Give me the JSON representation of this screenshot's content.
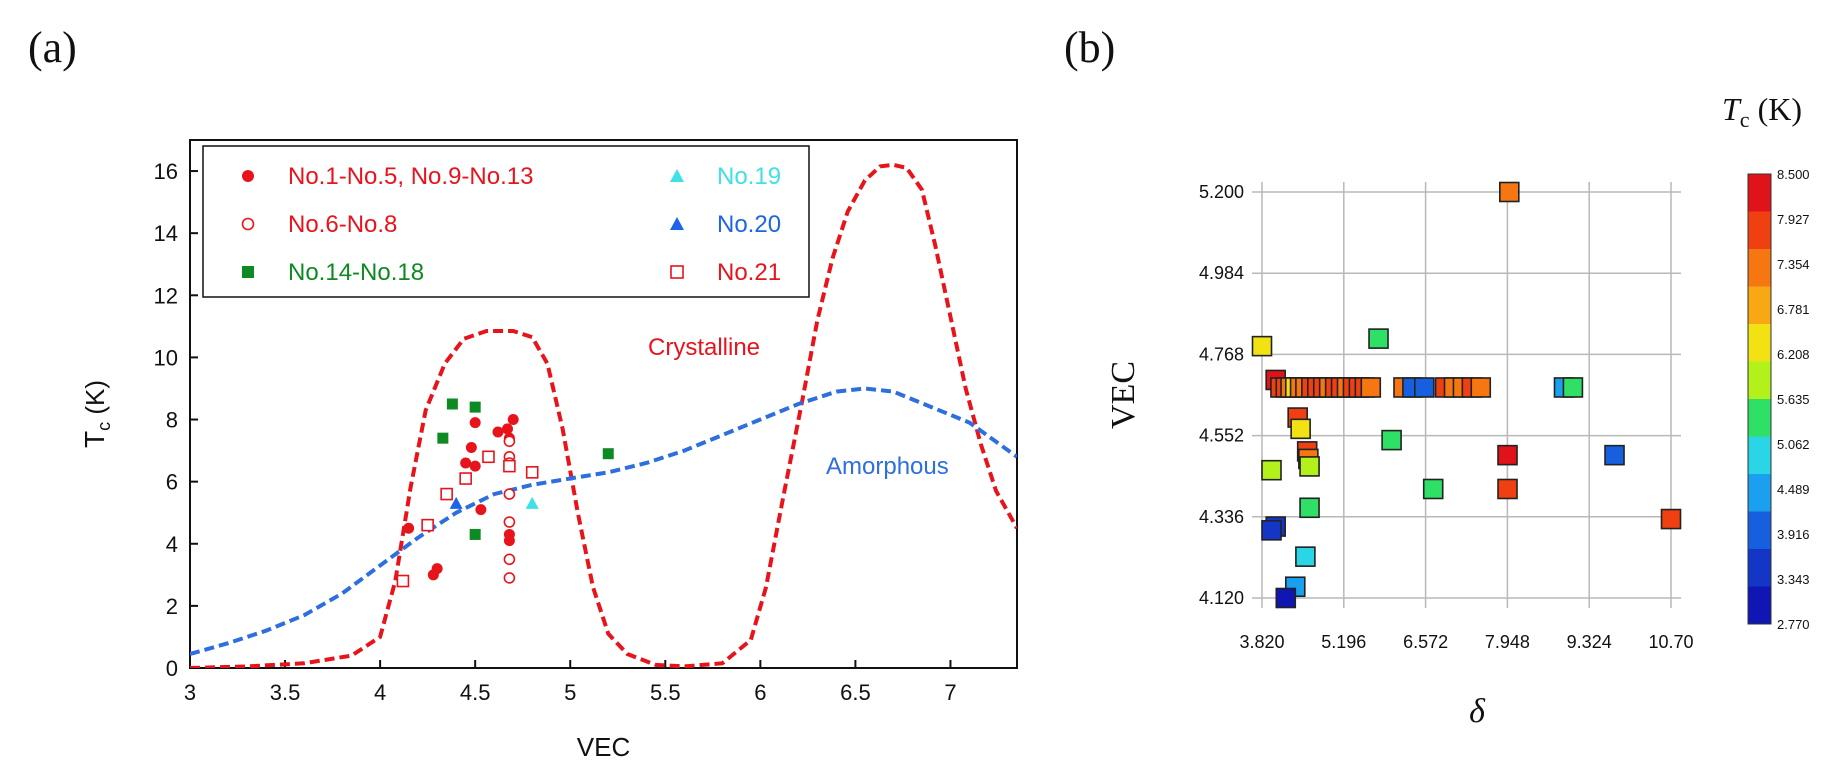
{
  "panels": {
    "a_label": "(a)",
    "b_label": "(b)"
  },
  "chart_data": [
    {
      "type": "scatter",
      "panel": "a",
      "xlabel": "VEC",
      "ylabel_main": "T",
      "ylabel_sub": "c",
      "ylabel_unit": "(K)",
      "xlim": [
        3,
        7.35
      ],
      "ylim": [
        0,
        17
      ],
      "xticks": [
        3,
        3.5,
        4,
        4.5,
        5,
        5.5,
        6,
        6.5,
        7
      ],
      "xtick_labels": [
        "3",
        "3.5",
        "4",
        "4.5",
        "5",
        "5.5",
        "6",
        "6.5",
        "7"
      ],
      "yticks": [
        0,
        2,
        4,
        6,
        8,
        10,
        12,
        14,
        16
      ],
      "ytick_labels": [
        "0",
        "2",
        "4",
        "6",
        "8",
        "10",
        "12",
        "14",
        "16"
      ],
      "grid": false,
      "legend_position": "top-left",
      "series": [
        {
          "name": "No.1-No.5, No.9-No.13",
          "marker": "filled-circle",
          "color": "#e8141c",
          "points": [
            [
              4.15,
              4.5
            ],
            [
              4.28,
              3.0
            ],
            [
              4.3,
              3.2
            ],
            [
              4.45,
              6.6
            ],
            [
              4.48,
              7.1
            ],
            [
              4.5,
              7.9
            ],
            [
              4.5,
              6.5
            ],
            [
              4.53,
              5.1
            ],
            [
              4.62,
              7.6
            ],
            [
              4.67,
              7.7
            ],
            [
              4.68,
              7.4
            ],
            [
              4.68,
              4.3
            ],
            [
              4.68,
              4.1
            ],
            [
              4.7,
              8.0
            ]
          ]
        },
        {
          "name": "No.6-No.8",
          "marker": "open-circle",
          "color": "#e8141c",
          "points": [
            [
              4.68,
              6.8
            ],
            [
              4.68,
              6.6
            ],
            [
              4.68,
              5.6
            ],
            [
              4.68,
              4.7
            ],
            [
              4.68,
              3.5
            ],
            [
              4.68,
              2.9
            ],
            [
              4.68,
              7.3
            ]
          ]
        },
        {
          "name": "No.14-No.18",
          "marker": "filled-square",
          "color": "#0e8a22",
          "points": [
            [
              4.38,
              8.5
            ],
            [
              4.5,
              8.4
            ],
            [
              4.33,
              7.4
            ],
            [
              4.5,
              4.3
            ],
            [
              5.2,
              6.9
            ]
          ]
        },
        {
          "name": "No.19",
          "marker": "filled-triangle",
          "color": "#3fe0e6",
          "points": [
            [
              4.8,
              5.3
            ]
          ]
        },
        {
          "name": "No.20",
          "marker": "filled-triangle",
          "color": "#1e64e8",
          "points": [
            [
              4.4,
              5.3
            ]
          ]
        },
        {
          "name": "No.21",
          "marker": "open-square",
          "color": "#e8141c",
          "points": [
            [
              4.12,
              2.8
            ],
            [
              4.25,
              4.6
            ],
            [
              4.35,
              5.6
            ],
            [
              4.45,
              6.1
            ],
            [
              4.57,
              6.8
            ],
            [
              4.68,
              6.5
            ],
            [
              4.8,
              6.3
            ]
          ]
        }
      ],
      "curves": [
        {
          "name": "Crystalline",
          "style": "dashed",
          "color": "#e8141c",
          "points": [
            [
              3,
              0
            ],
            [
              3.3,
              0.05
            ],
            [
              3.6,
              0.15
            ],
            [
              3.85,
              0.4
            ],
            [
              4.0,
              1.0
            ],
            [
              4.08,
              2.8
            ],
            [
              4.16,
              5.8
            ],
            [
              4.24,
              8.3
            ],
            [
              4.34,
              9.8
            ],
            [
              4.44,
              10.6
            ],
            [
              4.56,
              10.85
            ],
            [
              4.7,
              10.85
            ],
            [
              4.8,
              10.65
            ],
            [
              4.88,
              9.8
            ],
            [
              4.96,
              7.7
            ],
            [
              5.04,
              5.0
            ],
            [
              5.12,
              2.6
            ],
            [
              5.2,
              1.1
            ],
            [
              5.3,
              0.45
            ],
            [
              5.45,
              0.1
            ],
            [
              5.6,
              0.05
            ],
            [
              5.8,
              0.15
            ],
            [
              5.95,
              0.9
            ],
            [
              6.03,
              2.6
            ],
            [
              6.12,
              5.5
            ],
            [
              6.22,
              8.6
            ],
            [
              6.3,
              11.2
            ],
            [
              6.38,
              13.2
            ],
            [
              6.46,
              14.7
            ],
            [
              6.55,
              15.7
            ],
            [
              6.63,
              16.15
            ],
            [
              6.7,
              16.2
            ],
            [
              6.77,
              16.1
            ],
            [
              6.85,
              15.4
            ],
            [
              6.92,
              13.6
            ],
            [
              7.0,
              11.3
            ],
            [
              7.08,
              9.0
            ],
            [
              7.16,
              7.2
            ],
            [
              7.24,
              5.7
            ],
            [
              7.35,
              4.5
            ]
          ]
        },
        {
          "name": "Amorphous",
          "style": "dashed",
          "color": "#2e6ede",
          "points": [
            [
              3,
              0.45
            ],
            [
              3.2,
              0.8
            ],
            [
              3.4,
              1.2
            ],
            [
              3.6,
              1.7
            ],
            [
              3.8,
              2.4
            ],
            [
              4.0,
              3.3
            ],
            [
              4.2,
              4.2
            ],
            [
              4.4,
              5.0
            ],
            [
              4.6,
              5.6
            ],
            [
              4.8,
              5.9
            ],
            [
              5.0,
              6.1
            ],
            [
              5.2,
              6.3
            ],
            [
              5.4,
              6.6
            ],
            [
              5.6,
              7.0
            ],
            [
              5.8,
              7.5
            ],
            [
              6.0,
              8.0
            ],
            [
              6.2,
              8.5
            ],
            [
              6.4,
              8.9
            ],
            [
              6.55,
              9.0
            ],
            [
              6.7,
              8.9
            ],
            [
              6.9,
              8.4
            ],
            [
              7.1,
              7.9
            ],
            [
              7.35,
              6.8
            ]
          ]
        }
      ],
      "annotations": [
        {
          "text": "Crystalline",
          "color": "#e8141c"
        },
        {
          "text": "Amorphous",
          "color": "#2e6ede"
        }
      ]
    },
    {
      "type": "scatter",
      "panel": "b",
      "xlabel": "δ",
      "ylabel": "VEC",
      "xlim": [
        3.82,
        10.7
      ],
      "ylim": [
        4.12,
        5.2
      ],
      "xtick_labels": [
        "3.820",
        "5.196",
        "6.572",
        "7.948",
        "9.324",
        "10.70"
      ],
      "ytick_labels": [
        "4.120",
        "4.336",
        "4.552",
        "4.768",
        "4.984",
        "5.200"
      ],
      "grid": true,
      "marker": "square",
      "colorbar": {
        "title_main": "T",
        "title_sub": "c",
        "title_unit": "(K)",
        "levels": [
          "8.500",
          "7.927",
          "7.354",
          "6.781",
          "6.208",
          "5.635",
          "5.062",
          "4.489",
          "3.916",
          "3.343",
          "2.770"
        ],
        "colors": [
          "#e0121a",
          "#f04012",
          "#f67612",
          "#f8a812",
          "#f2e214",
          "#b2f21a",
          "#2ee066",
          "#2ad6e6",
          "#1aa0ee",
          "#1660e0",
          "#1436c6",
          "#0f16b4"
        ]
      },
      "points": [
        [
          3.82,
          4.79,
          6.2
        ],
        [
          4.05,
          4.7,
          8.3
        ],
        [
          4.13,
          4.68,
          7.9
        ],
        [
          4.22,
          4.68,
          7.6
        ],
        [
          4.3,
          4.68,
          7.5
        ],
        [
          4.38,
          4.68,
          6.3
        ],
        [
          4.46,
          4.68,
          7.2
        ],
        [
          4.55,
          4.68,
          7.4
        ],
        [
          4.65,
          4.68,
          7.6
        ],
        [
          4.75,
          4.68,
          7.9
        ],
        [
          4.85,
          4.68,
          7.8
        ],
        [
          4.95,
          4.68,
          7.5
        ],
        [
          5.05,
          4.68,
          7.8
        ],
        [
          5.15,
          4.68,
          7.6
        ],
        [
          5.25,
          4.68,
          7.4
        ],
        [
          5.35,
          4.68,
          7.7
        ],
        [
          5.45,
          4.68,
          7.9
        ],
        [
          5.55,
          4.68,
          7.6
        ],
        [
          5.65,
          4.68,
          7.5
        ],
        [
          6.2,
          4.68,
          7.5
        ],
        [
          6.35,
          4.68,
          4.0
        ],
        [
          6.55,
          4.68,
          3.9
        ],
        [
          6.9,
          4.68,
          7.6
        ],
        [
          7.05,
          4.68,
          7.4
        ],
        [
          7.2,
          4.68,
          7.2
        ],
        [
          7.35,
          4.68,
          7.6
        ],
        [
          7.5,
          4.68,
          7.5
        ],
        [
          8.9,
          4.68,
          4.5
        ],
        [
          9.05,
          4.68,
          5.4
        ],
        [
          4.42,
          4.6,
          7.6
        ],
        [
          4.47,
          4.57,
          6.3
        ],
        [
          4.58,
          4.51,
          7.6
        ],
        [
          4.6,
          4.49,
          7.4
        ],
        [
          4.62,
          4.47,
          5.7
        ],
        [
          3.98,
          4.46,
          6.0
        ],
        [
          4.62,
          4.36,
          5.3
        ],
        [
          4.55,
          4.23,
          4.8
        ],
        [
          4.38,
          4.15,
          4.5
        ],
        [
          4.22,
          4.12,
          3.2
        ],
        [
          4.05,
          4.31,
          3.3
        ],
        [
          3.98,
          4.3,
          3.4
        ],
        [
          5.78,
          4.81,
          5.5
        ],
        [
          6.0,
          4.54,
          5.5
        ],
        [
          6.7,
          4.41,
          5.4
        ],
        [
          7.95,
          4.5,
          8.3
        ],
        [
          7.95,
          4.41,
          8.0
        ],
        [
          9.75,
          4.5,
          4.0
        ],
        [
          10.7,
          4.33,
          7.6
        ],
        [
          7.98,
          5.2,
          7.1
        ]
      ]
    }
  ]
}
